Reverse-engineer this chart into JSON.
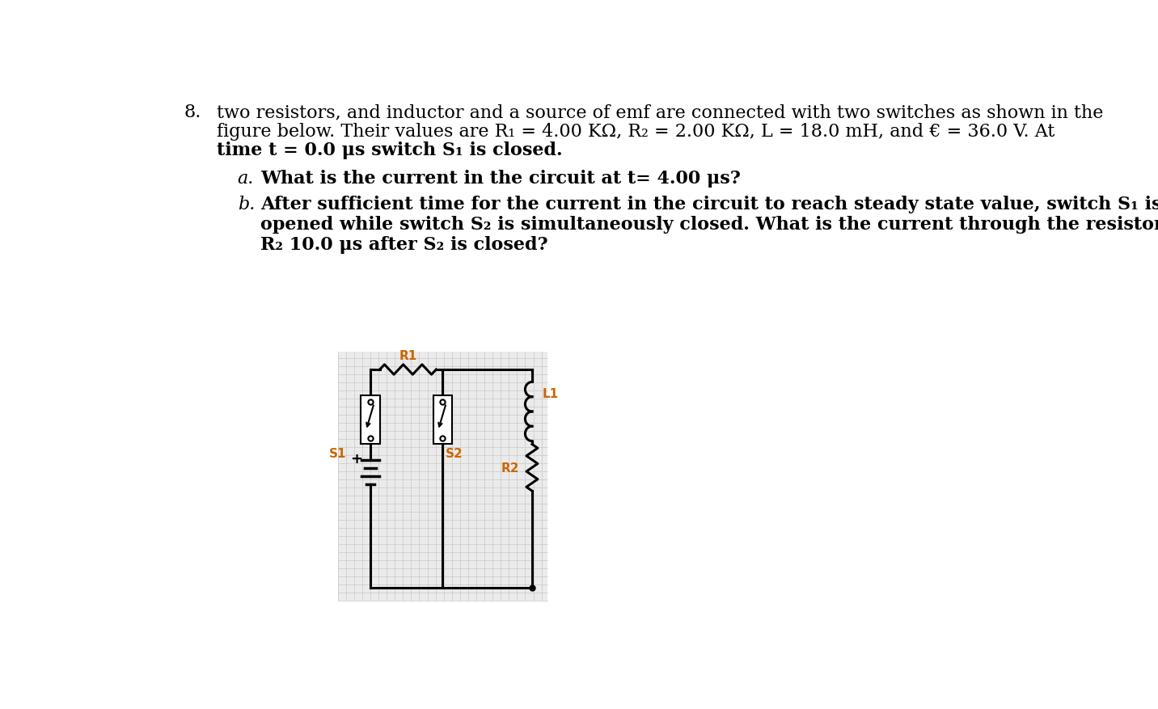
{
  "bg_color": "#ffffff",
  "grid_bg_color": "#ebebeb",
  "grid_line_color": "#c8c8c8",
  "circuit_line_color": "#000000",
  "text_color": "#000000",
  "orange_label": "#cc6600",
  "line1": "two resistors, and inductor and a source of emf are connected with two switches as shown in the",
  "line2": "figure below. Their values are R₁ = 4.00 KΩ, R₂ = 2.00 KΩ, L = 18.0 mH, and € = 36.0 V. At",
  "line3": "time t = 0.0 μs switch S₁ is closed.",
  "part_a": "What is the current in the circuit at t= 4.00 μs?",
  "part_b_1": "After sufficient time for the current in the circuit to reach steady state value, switch S₁ is",
  "part_b_2": "opened while switch S₂ is simultaneously closed. What is the current through the resistor",
  "part_b_3": "R₂ 10.0 μs after S₂ is closed?"
}
